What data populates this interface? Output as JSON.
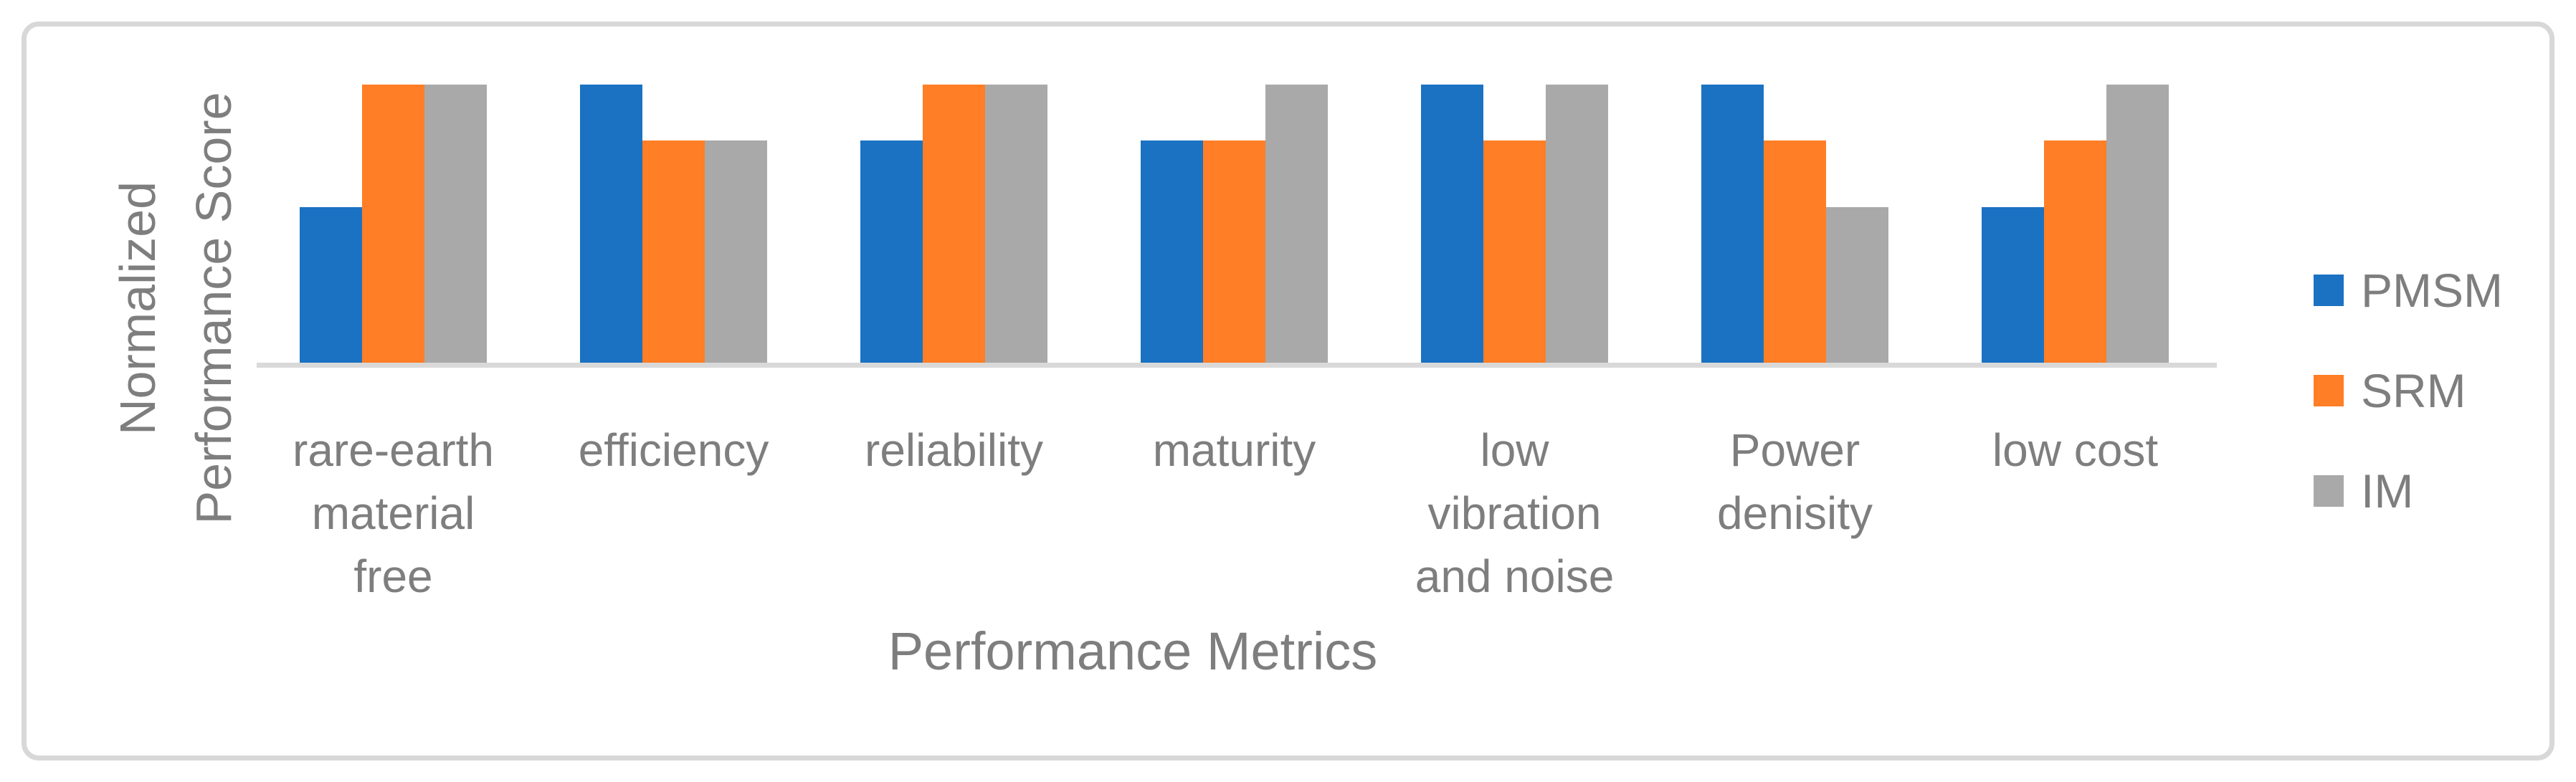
{
  "chart_data": {
    "type": "bar",
    "title": "",
    "xlabel": "Performance Metrics",
    "ylabel": "Normalized Performance Score",
    "ylabel_lines": [
      "Normalized",
      "Performance Score"
    ],
    "categories": [
      "rare-earth material free",
      "efficiency",
      "reliability",
      "maturity",
      "low vibration and noise",
      "Power denisity",
      "low cost"
    ],
    "category_lines": [
      [
        "rare-earth",
        "material",
        "free"
      ],
      [
        "efficiency"
      ],
      [
        "reliability"
      ],
      [
        "maturity"
      ],
      [
        "low",
        "vibration",
        "and noise"
      ],
      [
        "Power",
        "denisity"
      ],
      [
        "low cost"
      ]
    ],
    "series": [
      {
        "name": "PMSM",
        "color": "#1B72C2",
        "values": [
          0.56,
          1.0,
          0.8,
          0.8,
          1.0,
          1.0,
          0.56
        ]
      },
      {
        "name": "SRM",
        "color": "#FF7E26",
        "values": [
          1.0,
          0.8,
          1.0,
          0.8,
          0.8,
          0.8,
          0.8
        ]
      },
      {
        "name": "IM",
        "color": "#A9A9A9",
        "values": [
          1.0,
          0.8,
          1.0,
          1.0,
          1.0,
          0.56,
          1.0
        ]
      }
    ],
    "ylim": [
      0,
      1.0
    ],
    "grid": false,
    "y_axis_ticks_visible": false,
    "legend_position": "right",
    "axis_line_color": "#D9D9D9",
    "frame_color": "#D8D8D8",
    "text_color": "#7E7E7E",
    "background_color": "#FFFFFF"
  }
}
